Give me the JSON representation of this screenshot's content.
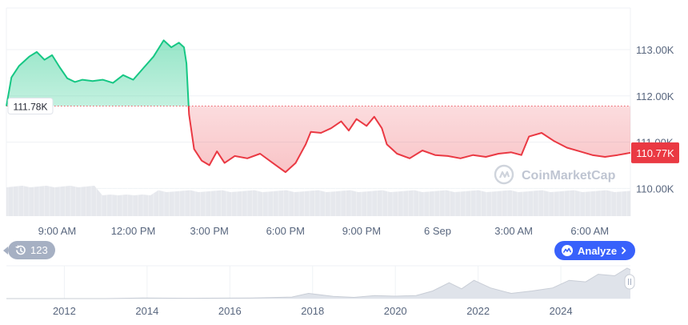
{
  "colors": {
    "up": "#16c784",
    "down": "#ea3943",
    "grid": "#eff2f5",
    "axis_text": "#58667e",
    "brand": "#3861fb",
    "history_badge": "#a6b0c3"
  },
  "chart_data": [
    {
      "type": "area",
      "x_unit": "hours since 7:00 AM (Sep 5)",
      "ylim": [
        109.4,
        113.9
      ],
      "y_ticks": [
        110.0,
        111.0,
        112.0,
        113.0
      ],
      "y_tick_labels": [
        "110.00K",
        "111.00K",
        "112.00K",
        "113.00K"
      ],
      "x_tick_labels": [
        "9:00 AM",
        "12:00 PM",
        "3:00 PM",
        "6:00 PM",
        "9:00 PM",
        "6 Sep",
        "3:00 AM",
        "6:00 AM"
      ],
      "baseline": {
        "value": 111.78,
        "label": "111.78K"
      },
      "current": {
        "value": 110.77,
        "label": "110.77K"
      },
      "grid": true,
      "watermark": "CoinMarketCap",
      "series": [
        {
          "values": [
            [
              0.0,
              111.78
            ],
            [
              0.2,
              112.4
            ],
            [
              0.5,
              112.65
            ],
            [
              0.9,
              112.85
            ],
            [
              1.2,
              112.95
            ],
            [
              1.5,
              112.78
            ],
            [
              1.8,
              112.88
            ],
            [
              2.1,
              112.62
            ],
            [
              2.4,
              112.38
            ],
            [
              2.7,
              112.3
            ],
            [
              3.0,
              112.35
            ],
            [
              3.4,
              112.32
            ],
            [
              3.8,
              112.35
            ],
            [
              4.2,
              112.28
            ],
            [
              4.6,
              112.45
            ],
            [
              5.0,
              112.35
            ],
            [
              5.4,
              112.6
            ],
            [
              5.8,
              112.85
            ],
            [
              6.2,
              113.2
            ],
            [
              6.5,
              113.05
            ],
            [
              6.8,
              113.15
            ],
            [
              7.0,
              113.05
            ],
            [
              7.1,
              112.7
            ],
            [
              7.2,
              111.6
            ],
            [
              7.4,
              110.85
            ],
            [
              7.7,
              110.6
            ],
            [
              8.0,
              110.5
            ],
            [
              8.3,
              110.8
            ],
            [
              8.6,
              110.55
            ],
            [
              9.0,
              110.7
            ],
            [
              9.5,
              110.65
            ],
            [
              10.0,
              110.75
            ],
            [
              10.5,
              110.55
            ],
            [
              11.0,
              110.35
            ],
            [
              11.4,
              110.55
            ],
            [
              11.8,
              110.95
            ],
            [
              12.0,
              111.22
            ],
            [
              12.4,
              111.2
            ],
            [
              12.8,
              111.3
            ],
            [
              13.2,
              111.45
            ],
            [
              13.5,
              111.25
            ],
            [
              13.8,
              111.5
            ],
            [
              14.2,
              111.35
            ],
            [
              14.5,
              111.55
            ],
            [
              14.8,
              111.3
            ],
            [
              15.0,
              110.95
            ],
            [
              15.4,
              110.75
            ],
            [
              15.9,
              110.65
            ],
            [
              16.4,
              110.82
            ],
            [
              16.9,
              110.72
            ],
            [
              17.4,
              110.7
            ],
            [
              17.9,
              110.65
            ],
            [
              18.4,
              110.72
            ],
            [
              18.9,
              110.68
            ],
            [
              19.4,
              110.75
            ],
            [
              19.9,
              110.78
            ],
            [
              20.3,
              110.72
            ],
            [
              20.6,
              111.12
            ],
            [
              21.1,
              111.2
            ],
            [
              21.6,
              111.02
            ],
            [
              22.1,
              110.88
            ],
            [
              22.6,
              110.8
            ],
            [
              23.1,
              110.72
            ],
            [
              23.6,
              110.68
            ],
            [
              24.1,
              110.72
            ],
            [
              24.4,
              110.75
            ],
            [
              24.6,
              110.77
            ]
          ]
        }
      ]
    },
    {
      "type": "area",
      "x_unit": "year",
      "x_tick_labels": [
        "2012",
        "2014",
        "2016",
        "2018",
        "2020",
        "2022",
        "2024"
      ],
      "values": [
        [
          2010.6,
          0.0
        ],
        [
          2013.0,
          0.0
        ],
        [
          2013.9,
          0.02
        ],
        [
          2015.0,
          0.01
        ],
        [
          2016.5,
          0.02
        ],
        [
          2017.5,
          0.05
        ],
        [
          2017.9,
          0.17
        ],
        [
          2018.5,
          0.07
        ],
        [
          2019.0,
          0.04
        ],
        [
          2019.5,
          0.1
        ],
        [
          2020.0,
          0.08
        ],
        [
          2020.5,
          0.1
        ],
        [
          2020.9,
          0.25
        ],
        [
          2021.3,
          0.52
        ],
        [
          2021.6,
          0.32
        ],
        [
          2021.9,
          0.6
        ],
        [
          2022.3,
          0.35
        ],
        [
          2022.8,
          0.17
        ],
        [
          2023.3,
          0.25
        ],
        [
          2023.8,
          0.35
        ],
        [
          2024.2,
          0.6
        ],
        [
          2024.6,
          0.55
        ],
        [
          2024.9,
          0.8
        ],
        [
          2025.3,
          0.75
        ],
        [
          2025.6,
          1.0
        ],
        [
          2025.68,
          0.95
        ]
      ]
    }
  ],
  "controls": {
    "history_label": "123",
    "analyze_label": "Analyze"
  },
  "icons": {
    "history": "history-clock-icon",
    "analyze": "analyze-icon",
    "chevron": "chevron-right-icon",
    "watermark_logo": "coinmarketcap-logo",
    "scroll_handle": "drag-handle-icon"
  }
}
